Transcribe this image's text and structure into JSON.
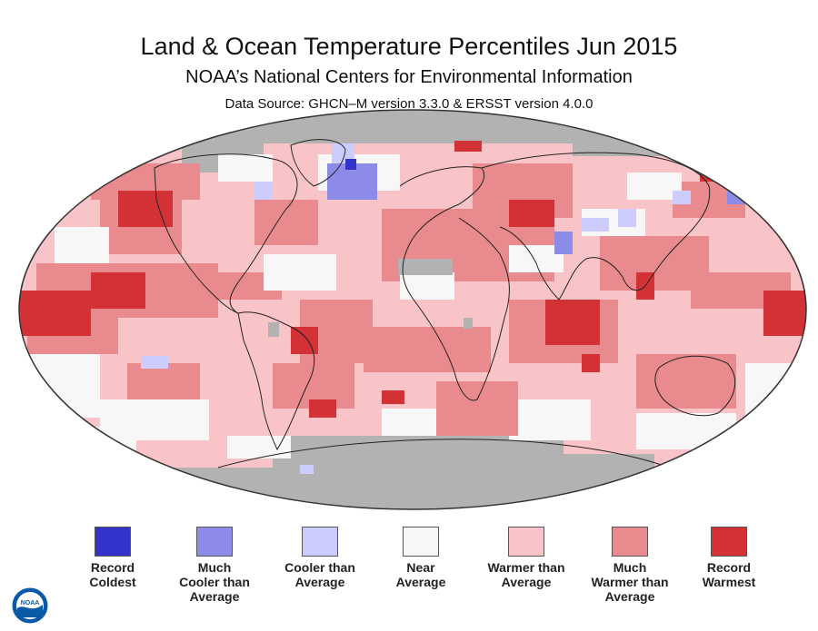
{
  "header": {
    "title": "Land & Ocean Temperature Percentiles Jun 2015",
    "subtitle": "NOAA’s National Centers for Environmental Information",
    "source": "Data Source: GHCN–M version 3.3.0 & ERSST version 4.0.0"
  },
  "colors": {
    "record_coldest": "#3333cc",
    "much_cooler": "#8c8ce8",
    "cooler": "#ccccff",
    "near_average": "#f7f7f7",
    "warmer": "#f8c4c8",
    "much_warmer": "#e98a8e",
    "record_warmest": "#d23236",
    "no_data": "#b2b2b2",
    "ocean_base": "#f8c4c8",
    "coastline": "#222222"
  },
  "legend": [
    {
      "label_lines": [
        "Record",
        "Coldest"
      ],
      "color": "#3333cc"
    },
    {
      "label_lines": [
        "Much",
        "Cooler than",
        "Average"
      ],
      "color": "#8c8ce8"
    },
    {
      "label_lines": [
        "Cooler than",
        "Average"
      ],
      "color": "#ccccff"
    },
    {
      "label_lines": [
        "Near",
        "Average"
      ],
      "color": "#f7f7f7"
    },
    {
      "label_lines": [
        "Warmer than",
        "Average"
      ],
      "color": "#f8c4c8"
    },
    {
      "label_lines": [
        "Much",
        "Warmer than",
        "Average"
      ],
      "color": "#e98a8e"
    },
    {
      "label_lines": [
        "Record",
        "Warmest"
      ],
      "color": "#d23236"
    }
  ],
  "logo": {
    "text": "NOAA",
    "icon": "noaa-logo-icon"
  }
}
